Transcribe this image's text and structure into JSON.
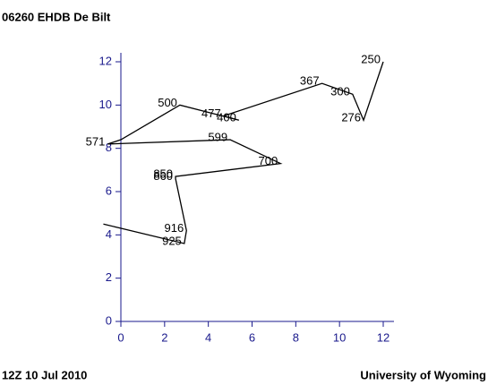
{
  "chart_data": {
    "type": "line",
    "title": "06260 EHDB De Bilt",
    "footer_left": "12Z 10 Jul 2010",
    "footer_right": "University of Wyoming",
    "x": [
      -0.8,
      2.9,
      3.0,
      2.5,
      2.5,
      7.3,
      5.0,
      -0.6,
      0.0,
      2.7,
      5.4,
      4.7,
      9.2,
      10.6,
      11.1,
      12.0
    ],
    "series": [
      {
        "color": "#000000",
        "values": [
          4.5,
          3.6,
          4.2,
          6.6,
          6.7,
          7.3,
          8.4,
          8.2,
          8.4,
          10.0,
          9.3,
          9.5,
          11.0,
          10.5,
          9.3,
          12.0
        ],
        "point_labels": [
          null,
          "925",
          "916",
          "860",
          "850",
          "700",
          "599",
          "571",
          null,
          "500",
          "400",
          "477",
          "367",
          "300",
          "276",
          "250"
        ]
      }
    ],
    "xlim": [
      0,
      12
    ],
    "ylim": [
      0,
      12
    ],
    "xticks": [
      0,
      2,
      4,
      6,
      8,
      10,
      12
    ],
    "yticks": [
      0,
      2,
      4,
      6,
      8,
      10,
      12
    ],
    "axis_color": "#1a1a8c"
  }
}
